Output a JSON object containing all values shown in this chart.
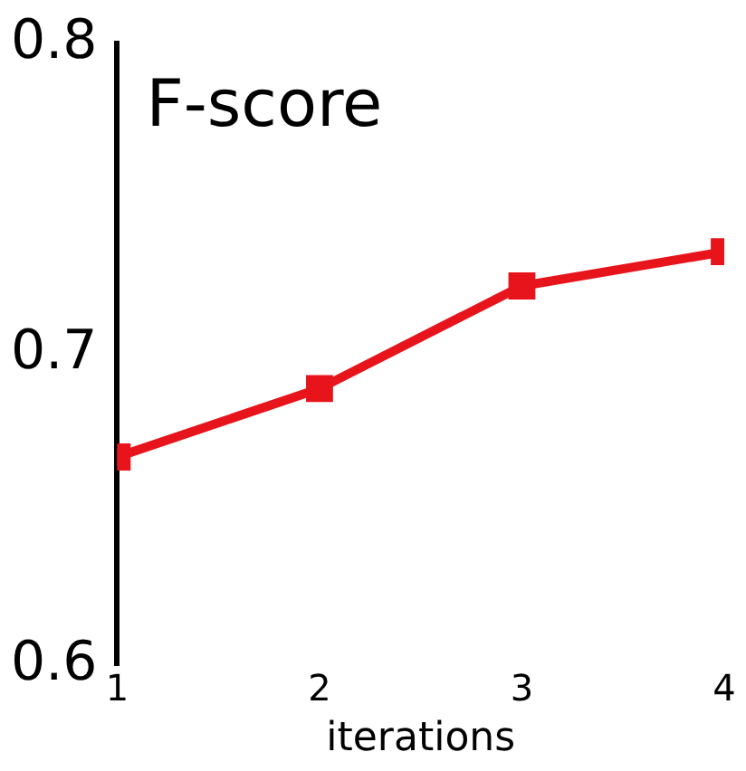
{
  "chart_data": {
    "type": "line",
    "title": "F-score",
    "xlabel": "iterations",
    "x": [
      1,
      2,
      3,
      4
    ],
    "series": [
      {
        "color": "#e8141c",
        "values": [
          0.667,
          0.689,
          0.722,
          0.733
        ]
      }
    ],
    "xlim": [
      1,
      4
    ],
    "xticks": [
      1,
      2,
      3,
      4
    ],
    "ylim": [
      0.6,
      0.8
    ],
    "yticks": [
      0.6,
      0.7,
      0.8
    ],
    "grid": false,
    "legend": false,
    "marker": "square",
    "line_style": "solid"
  }
}
